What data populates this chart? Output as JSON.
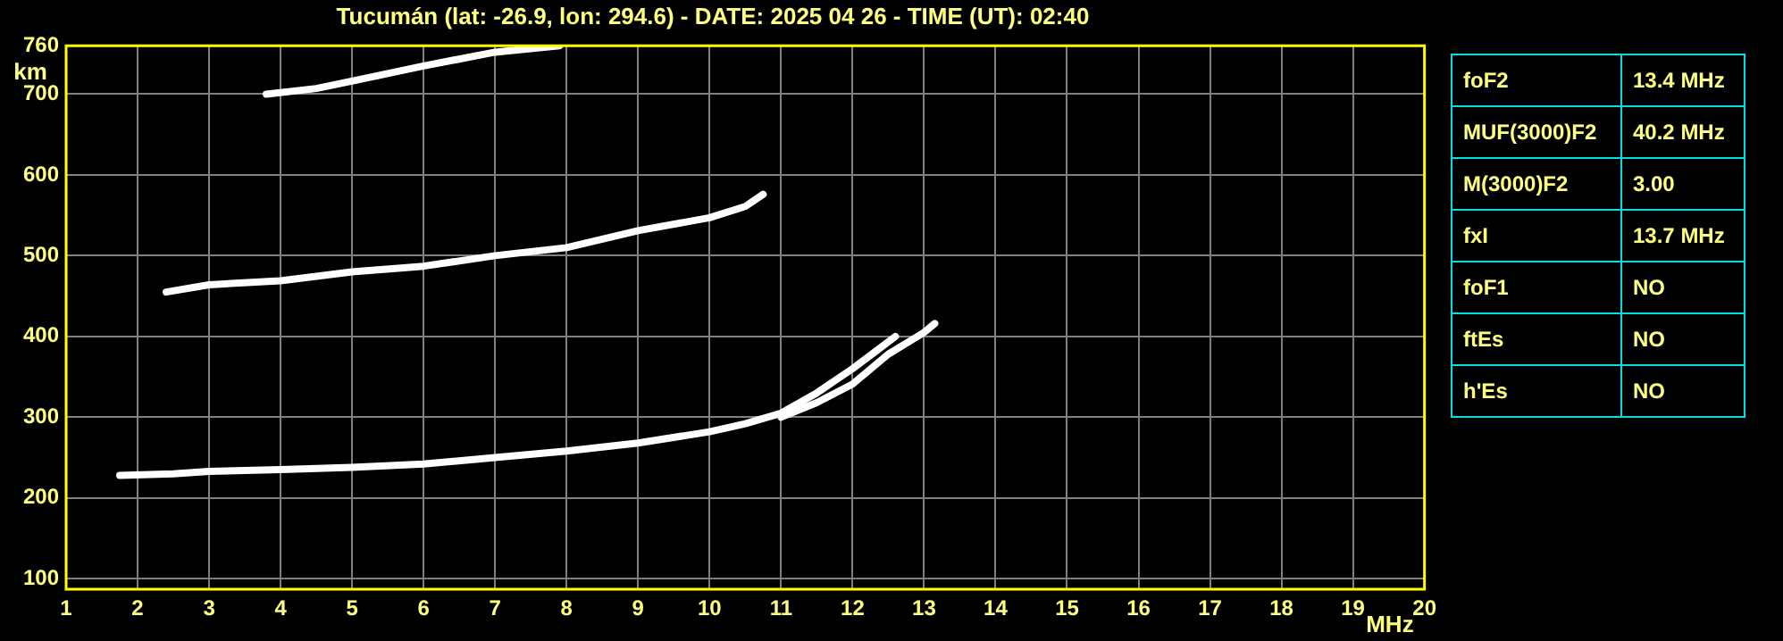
{
  "chart_data": [
    {
      "type": "line",
      "title": "Tucumán (lat: -26.9, lon: 294.6) - DATE: 2025 04 26 - TIME (UT): 02:40",
      "xlabel": "MHz",
      "ylabel": "km",
      "xlim": [
        1,
        20
      ],
      "xticks": [
        1,
        2,
        3,
        4,
        5,
        6,
        7,
        8,
        9,
        10,
        11,
        12,
        13,
        14,
        15,
        16,
        17,
        18,
        19,
        20
      ],
      "ylim": [
        87,
        760
      ],
      "yticks": [
        100,
        200,
        300,
        400,
        500,
        600,
        700,
        760
      ],
      "grid": true,
      "legend": false,
      "marker": "none",
      "line_style": "solid",
      "series": [
        {
          "color": "#ffffff",
          "x": [
            1.75,
            2.5,
            3,
            4,
            5,
            6,
            7,
            8,
            9,
            10,
            10.5,
            11,
            11.5,
            12,
            12.3,
            12.6
          ],
          "values": [
            228,
            230,
            233,
            235,
            238,
            242,
            250,
            258,
            268,
            282,
            292,
            305,
            330,
            360,
            380,
            400
          ]
        },
        {
          "color": "#ffffff",
          "x": [
            11,
            11.5,
            12,
            12.5,
            13,
            13.15
          ],
          "values": [
            300,
            318,
            341,
            378,
            405,
            416
          ]
        },
        {
          "color": "#ffffff",
          "x": [
            2.4,
            3,
            4,
            5,
            6,
            7,
            8,
            9,
            10,
            10.5,
            10.75
          ],
          "values": [
            455,
            464,
            469,
            480,
            487,
            500,
            510,
            531,
            547,
            561,
            576
          ]
        },
        {
          "color": "#ffffff",
          "x": [
            3.8,
            4.5,
            5.1,
            6,
            7,
            7.9
          ],
          "values": [
            700,
            707,
            718,
            735,
            752,
            760
          ]
        }
      ]
    },
    {
      "type": "other",
      "annotations": [
        "foF2",
        "13.4 MHz",
        "MUF(3000)F2",
        "40.2 MHz",
        "M(3000)F2",
        "3.00",
        "fxI",
        "13.7 MHz",
        "foF1",
        "NO",
        "ftEs",
        "NO",
        "h'Es",
        "NO"
      ]
    }
  ]
}
